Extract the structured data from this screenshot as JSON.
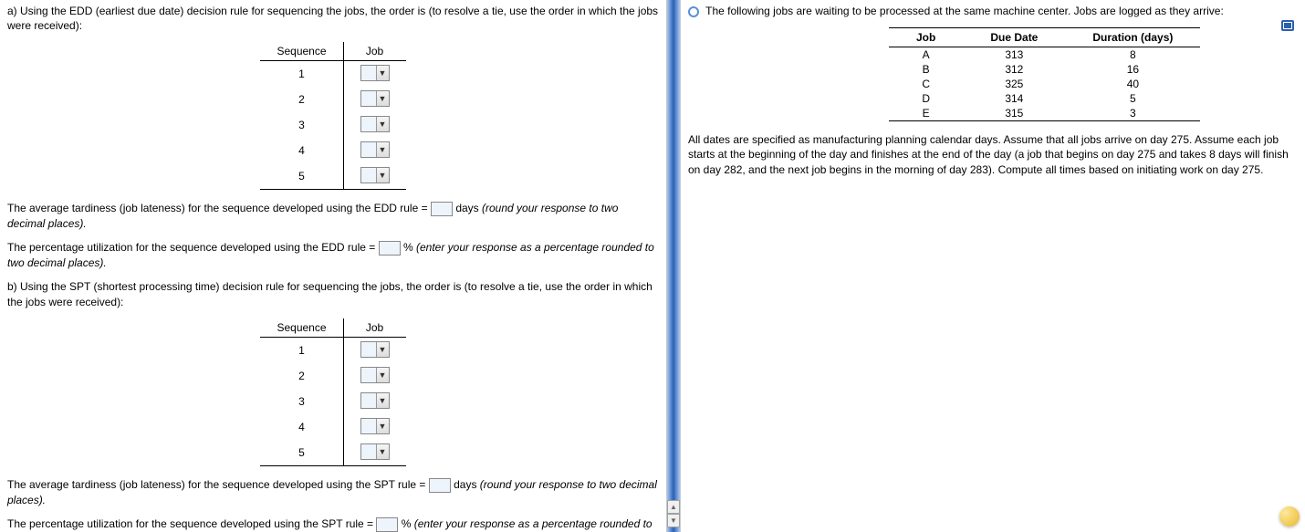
{
  "left": {
    "intro_a": "a) Using the EDD (earliest due date) decision rule for sequencing the jobs, the order is (to resolve a tie, use the order in which the jobs were received):",
    "seq_header_1": "Sequence",
    "seq_header_2": "Job",
    "seq_nums": [
      "1",
      "2",
      "3",
      "4",
      "5"
    ],
    "tardiness_a_pre": "The average tardiness (job lateness) for the sequence developed using the EDD rule =",
    "tardiness_a_post": "days ",
    "tardiness_a_hint": "(round your response to two decimal places).",
    "util_a_pre": "The percentage utilization for the sequence developed using the EDD rule =",
    "util_a_post": "% ",
    "util_a_hint": "(enter your response as a percentage rounded to two decimal places).",
    "intro_b": "b) Using the SPT (shortest processing time) decision rule for sequencing the jobs, the order is (to resolve a tie, use the order in which the jobs were received):",
    "tardiness_b_pre": "The average tardiness (job lateness) for the sequence developed using the SPT rule =",
    "tardiness_b_post": "days ",
    "tardiness_b_hint": "(round your response to two decimal places).",
    "util_b_pre": "The percentage utilization for the sequence developed using the SPT rule =",
    "util_b_post": "% ",
    "util_b_hint": "(enter your response as a percentage rounded to"
  },
  "right": {
    "intro": "The following jobs are waiting to be processed at the same machine center. Jobs are logged as they arrive:",
    "cols": {
      "job": "Job",
      "due": "Due Date",
      "dur": "Duration (days)"
    },
    "rows": [
      {
        "job": "A",
        "due": "313",
        "dur": "8"
      },
      {
        "job": "B",
        "due": "312",
        "dur": "16"
      },
      {
        "job": "C",
        "due": "325",
        "dur": "40"
      },
      {
        "job": "D",
        "due": "314",
        "dur": "5"
      },
      {
        "job": "E",
        "due": "315",
        "dur": "3"
      }
    ],
    "note": "All dates are specified as manufacturing planning calendar days. Assume that all jobs arrive on day 275. Assume each job starts at the beginning of the day and finishes at the end of the day (a job that begins on day 275 and takes 8 days will finish on day 282, and the next job begins in the morning of day 283). Compute all times based on initiating work on day 275."
  }
}
